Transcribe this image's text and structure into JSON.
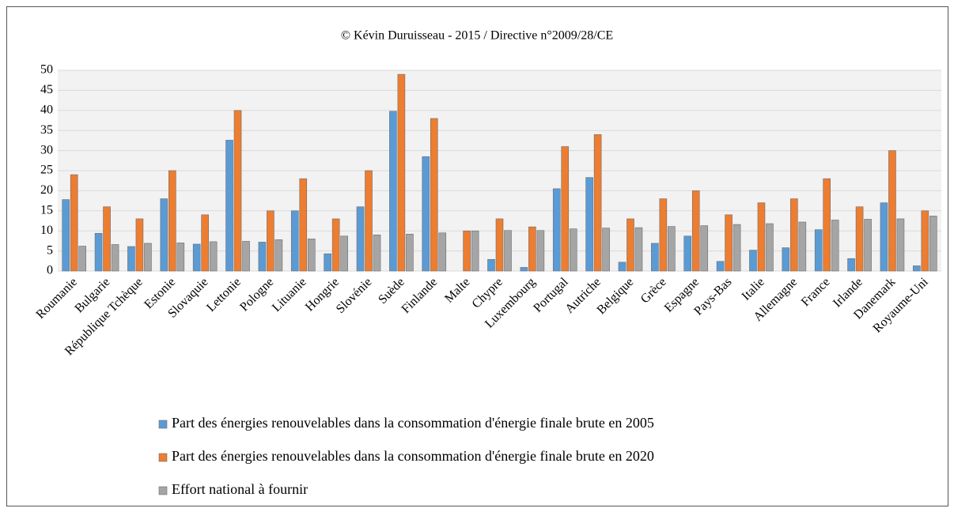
{
  "chart_data": {
    "type": "bar",
    "title": "© Kévin Duruisseau - 2015 / Directive n°2009/28/CE",
    "categories": [
      "Roumanie",
      "Bulgarie",
      "République Tchèque",
      "Estonie",
      "Slovaquie",
      "Lettonie",
      "Pologne",
      "Lituanie",
      "Hongrie",
      "Slovénie",
      "Suède",
      "Finlande",
      "Malte",
      "Chypre",
      "Luxembourg",
      "Portugal",
      "Autriche",
      "Belgique",
      "Grèce",
      "Espagne",
      "Pays-Bas",
      "Italie",
      "Allemagne",
      "France",
      "Irlande",
      "Danemark",
      "Royaume-Uni"
    ],
    "series": [
      {
        "name": "Part des énergies renouvelables dans la consommation d'énergie finale brute en 2005",
        "color": "#5b9bd5",
        "values": [
          17.8,
          9.4,
          6.1,
          18,
          6.7,
          32.6,
          7.2,
          15,
          4.3,
          16,
          39.8,
          28.5,
          0,
          2.9,
          0.9,
          20.5,
          23.3,
          2.2,
          6.9,
          8.7,
          2.4,
          5.2,
          5.8,
          10.3,
          3.1,
          17,
          1.3
        ]
      },
      {
        "name": "Part des énergies renouvelables dans la consommation d'énergie finale brute en 2020",
        "color": "#ed7d31",
        "values": [
          24,
          16,
          13,
          25,
          14,
          40,
          15,
          23,
          13,
          25,
          49,
          38,
          10,
          13,
          11,
          31,
          34,
          13,
          18,
          20,
          14,
          17,
          18,
          23,
          16,
          30,
          15
        ]
      },
      {
        "name": "Effort national à fournir",
        "color": "#a5a5a5",
        "values": [
          6.2,
          6.6,
          6.9,
          7,
          7.3,
          7.4,
          7.8,
          8,
          8.7,
          9,
          9.2,
          9.5,
          10,
          10.1,
          10.1,
          10.5,
          10.7,
          10.8,
          11.1,
          11.3,
          11.6,
          11.8,
          12.2,
          12.7,
          12.9,
          13,
          13.7
        ]
      }
    ],
    "ylim": [
      0,
      50
    ],
    "yticks": [
      0,
      5,
      10,
      15,
      20,
      25,
      30,
      35,
      40,
      45,
      50
    ],
    "grid": true,
    "legend": "bottom"
  }
}
